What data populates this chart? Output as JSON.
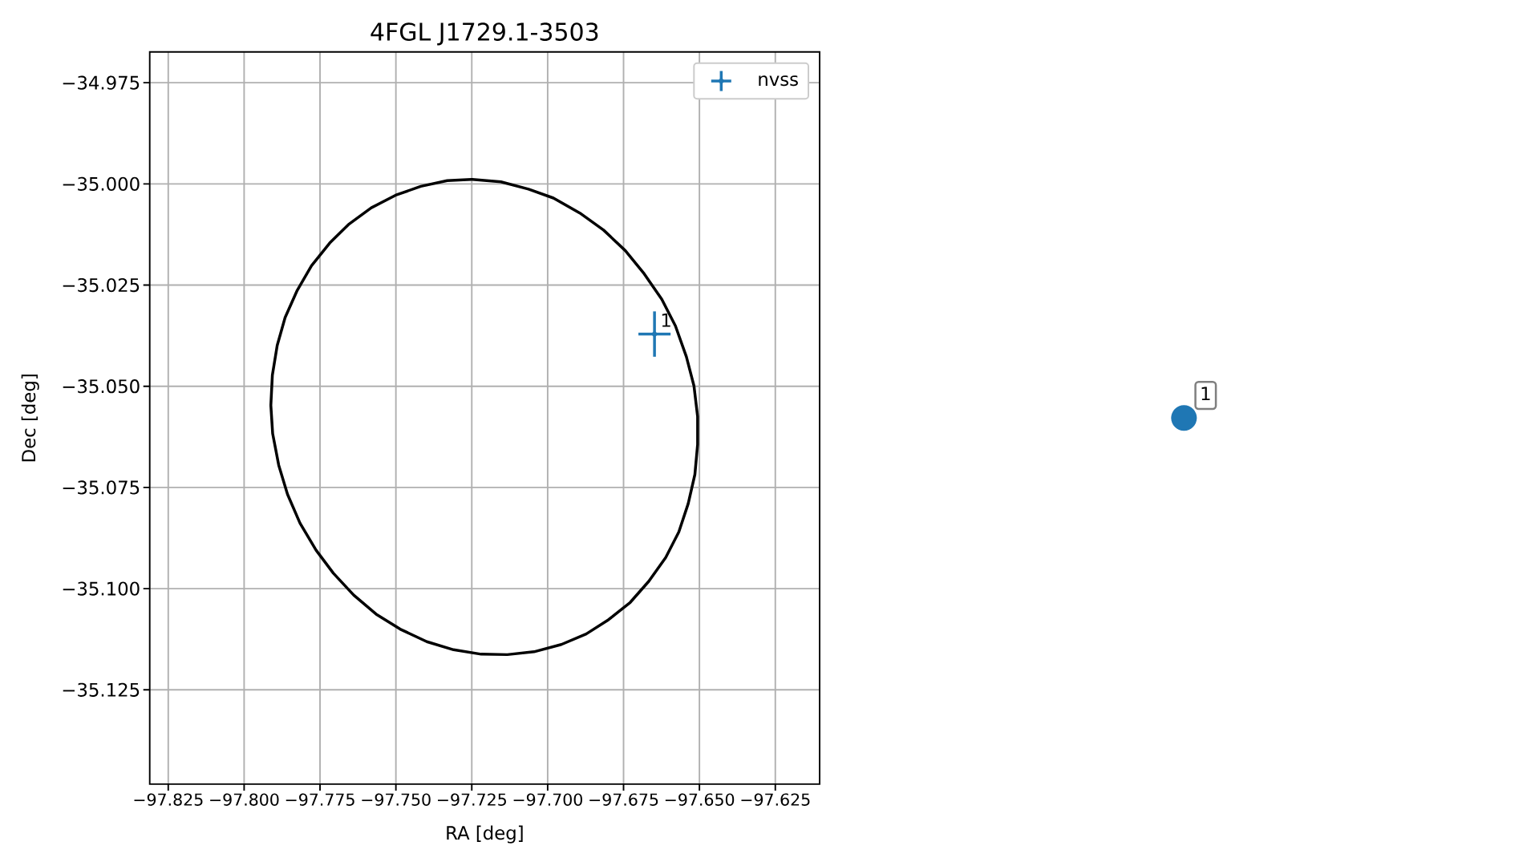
{
  "chart_data": [
    {
      "type": "scatter",
      "title": "4FGL J1729.1-3503",
      "xlabel": "RA [deg]",
      "ylabel": "Dec [deg]",
      "series": [
        {
          "type": "line",
          "color": "#000000",
          "x": [
            -97.7248,
            -97.7154,
            -97.7063,
            -97.6981,
            -97.6894,
            -97.6816,
            -97.6744,
            -97.6682,
            -97.6624,
            -97.6579,
            -97.6543,
            -97.6518,
            -97.6506,
            -97.6506,
            -97.6515,
            -97.6537,
            -97.6568,
            -97.6611,
            -97.6667,
            -97.6728,
            -97.68,
            -97.6873,
            -97.6955,
            -97.7045,
            -97.7133,
            -97.7219,
            -97.731,
            -97.7398,
            -97.7486,
            -97.7565,
            -97.7639,
            -97.7706,
            -97.7763,
            -97.7816,
            -97.7857,
            -97.7886,
            -97.7906,
            -97.7912,
            -97.7907,
            -97.7891,
            -97.7865,
            -97.7825,
            -97.7778,
            -97.7718,
            -97.7654,
            -97.7581,
            -97.7501,
            -97.7418,
            -97.7331,
            -97.7251
          ],
          "values": [
            -34.9989,
            -34.9995,
            -35.0013,
            -35.0035,
            -35.0072,
            -35.0114,
            -35.0165,
            -35.0222,
            -35.0285,
            -35.0351,
            -35.0427,
            -35.0499,
            -35.0575,
            -35.0644,
            -35.0718,
            -35.079,
            -35.086,
            -35.0923,
            -35.0982,
            -35.1034,
            -35.1077,
            -35.1112,
            -35.1138,
            -35.1156,
            -35.1163,
            -35.1162,
            -35.1151,
            -35.1131,
            -35.11,
            -35.1063,
            -35.1016,
            -35.0962,
            -35.0905,
            -35.0838,
            -35.0767,
            -35.0695,
            -35.0617,
            -35.0547,
            -35.0473,
            -35.0399,
            -35.033,
            -35.0263,
            -35.0202,
            -35.0146,
            -35.0099,
            -35.0059,
            -35.0028,
            -35.0006,
            -34.9992,
            -34.9989
          ]
        },
        {
          "name": "nvss",
          "type": "scatter",
          "color": "#1f77b4",
          "marker": "circle",
          "x": [
            -97.6648
          ],
          "values": [
            -35.0371
          ],
          "errors": [
            0.0056
          ],
          "xerrors": [
            0.0053
          ]
        }
      ],
      "annotations": [
        {
          "text": "1",
          "x": -97.6648,
          "y": -35.0371
        }
      ],
      "xlim": [
        -97.8311,
        -97.6104
      ],
      "ylim": [
        -35.1483,
        -34.9674
      ],
      "xticks": [
        {
          "value": -97.825,
          "label": "−97.825"
        },
        {
          "value": -97.8,
          "label": "−97.800"
        },
        {
          "value": -97.775,
          "label": "−97.775"
        },
        {
          "value": -97.75,
          "label": "−97.750"
        },
        {
          "value": -97.725,
          "label": "−97.725"
        },
        {
          "value": -97.7,
          "label": "−97.700"
        },
        {
          "value": -97.675,
          "label": "−97.675"
        },
        {
          "value": -97.65,
          "label": "−97.650"
        },
        {
          "value": -97.625,
          "label": "−97.625"
        }
      ],
      "yticks": [
        {
          "value": -34.975,
          "label": "−34.975"
        },
        {
          "value": -35.0,
          "label": "−35.000"
        },
        {
          "value": -35.025,
          "label": "−35.025"
        },
        {
          "value": -35.05,
          "label": "−35.050"
        },
        {
          "value": -35.075,
          "label": "−35.075"
        },
        {
          "value": -35.1,
          "label": "−35.100"
        },
        {
          "value": -35.125,
          "label": "−35.125"
        }
      ],
      "grid": true,
      "legend": "top right"
    },
    {
      "type": "other",
      "annotations": [
        "1"
      ]
    }
  ]
}
